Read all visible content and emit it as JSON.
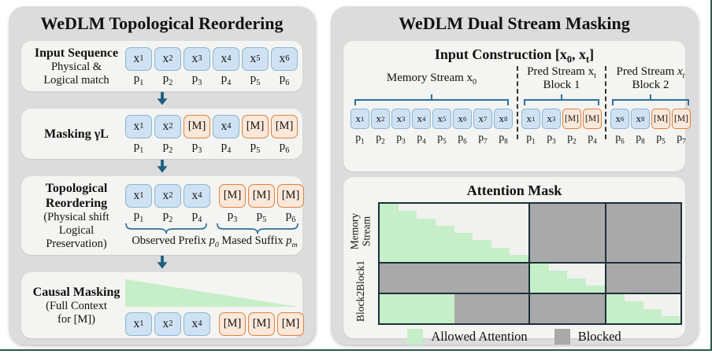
{
  "colors": {
    "frame": "#2d5948",
    "panel_bg": "#dcdcdc",
    "card_bg": "#f4f4f2",
    "token_blue_bg": "#cfe2f3",
    "token_blue_border": "#8cb4d2",
    "token_orange_bg": "#fce8da",
    "token_orange_border": "#e0813c",
    "arrow": "#1d6080",
    "brace": "#2d7099",
    "allowed_green": "#c6eec8",
    "blocked_gray": "#a9a9a9",
    "mask_cell_bg": "#f1f1ef",
    "grid_border": "#1c2f38",
    "text": "#111111"
  },
  "left_panel": {
    "title": "WeDLM Topological Reordering",
    "sections": [
      {
        "heading": "Input Sequence",
        "subheading_lines": [
          "Physical &",
          "Logical match"
        ],
        "tokens": [
          {
            "v": "x_1",
            "kind": "obs"
          },
          {
            "v": "x_2",
            "kind": "obs"
          },
          {
            "v": "x_3",
            "kind": "obs"
          },
          {
            "v": "x_4",
            "kind": "obs"
          },
          {
            "v": "x_5",
            "kind": "obs"
          },
          {
            "v": "x_6",
            "kind": "obs"
          }
        ],
        "positions": [
          "p_1",
          "p_2",
          "p_3",
          "p_4",
          "p_5",
          "p_6"
        ]
      },
      {
        "heading": "Masking γL",
        "tokens": [
          {
            "v": "x_1",
            "kind": "obs"
          },
          {
            "v": "x_2",
            "kind": "obs"
          },
          {
            "v": "[M]",
            "kind": "mask"
          },
          {
            "v": "x_4",
            "kind": "obs"
          },
          {
            "v": "[M]",
            "kind": "mask"
          },
          {
            "v": "[M]",
            "kind": "mask"
          }
        ],
        "positions": [
          "p_1",
          "p_2",
          "p_3",
          "p_4",
          "p_5",
          "p_6"
        ]
      },
      {
        "heading": "Topological Reordering",
        "subheading_lines": [
          "(Physical shift",
          "Logical Preservation)"
        ],
        "tokens": [
          {
            "v": "x_1",
            "kind": "obs"
          },
          {
            "v": "x_2",
            "kind": "obs"
          },
          {
            "v": "x_4",
            "kind": "obs"
          },
          {
            "v": "[M]",
            "kind": "mask"
          },
          {
            "v": "[M]",
            "kind": "mask"
          },
          {
            "v": "[M]",
            "kind": "mask"
          }
        ],
        "positions": [
          "p_1",
          "p_2",
          "p_4",
          "p_3",
          "p_5",
          "p_6"
        ],
        "caption": {
          "part1": "Observed Prefix",
          "var1": "p_0",
          "part2": "Mased Suffix",
          "var2": "p_m"
        }
      },
      {
        "heading": "Causal Masking",
        "subheading_lines": [
          "(Full Context",
          "for [M])"
        ],
        "tokens": [
          {
            "v": "x_1",
            "kind": "obs"
          },
          {
            "v": "x_2",
            "kind": "obs"
          },
          {
            "v": "x_4",
            "kind": "obs"
          },
          {
            "v": "[M]",
            "kind": "mask"
          },
          {
            "v": "[M]",
            "kind": "mask"
          },
          {
            "v": "[M]",
            "kind": "mask"
          }
        ]
      }
    ]
  },
  "right_panel": {
    "title": "WeDLM Dual Stream Masking",
    "input_construction": {
      "title": "Input Construction [x_0, x_t]",
      "groups": [
        {
          "label_pre": "Memory Stream",
          "label_var": "x_0",
          "label_line2": "",
          "tokens": [
            {
              "v": "x_1",
              "kind": "obs"
            },
            {
              "v": "x_2",
              "kind": "obs"
            },
            {
              "v": "x_3",
              "kind": "obs"
            },
            {
              "v": "x_4",
              "kind": "obs"
            },
            {
              "v": "x_5",
              "kind": "obs"
            },
            {
              "v": "x_6",
              "kind": "obs"
            },
            {
              "v": "x_7",
              "kind": "obs"
            },
            {
              "v": "x_8",
              "kind": "obs"
            }
          ],
          "positions": [
            "p_1",
            "p_2",
            "p_3",
            "p_4",
            "p_5",
            "p_6",
            "p_7",
            "p_8"
          ]
        },
        {
          "label_pre": "Pred Stream",
          "label_var": "x_t",
          "label_line2": "Block 1",
          "tokens": [
            {
              "v": "x_1",
              "kind": "obs"
            },
            {
              "v": "x_3",
              "kind": "obs"
            },
            {
              "v": "[M]",
              "kind": "mask"
            },
            {
              "v": "[M]",
              "kind": "mask"
            }
          ],
          "positions": [
            "p_1",
            "p_3",
            "p_2",
            "p_4"
          ]
        },
        {
          "label_pre": "Pred Stream",
          "label_var": "x_t",
          "label_line2": "Block 2",
          "tokens": [
            {
              "v": "x_6",
              "kind": "obs"
            },
            {
              "v": "x_8",
              "kind": "obs"
            },
            {
              "v": "[M]",
              "kind": "mask"
            },
            {
              "v": "[M]",
              "kind": "mask"
            }
          ],
          "positions": [
            "p_6",
            "p_8",
            "p_5",
            "p_7"
          ]
        }
      ]
    },
    "attention_mask": {
      "title": "Attention Mask",
      "row_labels": [
        {
          "line1": "Memory",
          "line2": "Stream"
        },
        {
          "line1": "Block1"
        },
        {
          "line1": "Block2"
        }
      ],
      "col_units": [
        8,
        4,
        4
      ],
      "row_units": [
        8,
        4,
        4
      ],
      "cells": [
        [
          "stair:8",
          "blocked",
          "blocked"
        ],
        [
          "blocked",
          "stair:4",
          "blocked"
        ],
        [
          "green:0.5",
          "blocked",
          "stair:4"
        ]
      ],
      "legend": [
        {
          "label": "Allowed Attention",
          "swatch": "green"
        },
        {
          "label": "Blocked",
          "swatch": "gray"
        }
      ]
    }
  }
}
